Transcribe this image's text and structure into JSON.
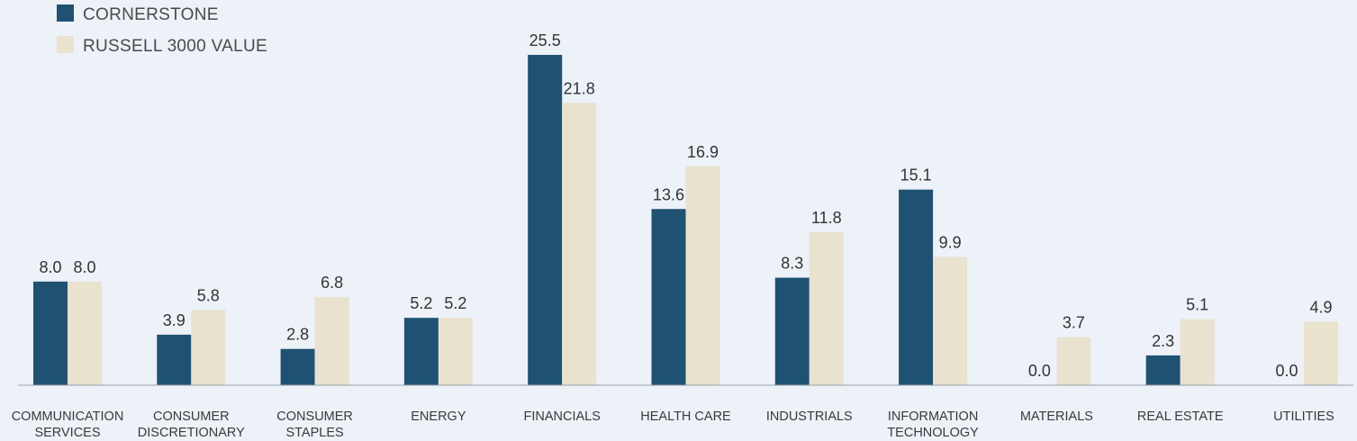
{
  "chart_data": {
    "type": "bar",
    "title": "",
    "xlabel": "",
    "ylabel": "",
    "ylim": [
      0,
      27
    ],
    "grid": false,
    "legend_placement": "top-left",
    "categories": [
      [
        "COMMUNICATION",
        "SERVICES"
      ],
      [
        "CONSUMER",
        "DISCRETIONARY"
      ],
      [
        "CONSUMER",
        "STAPLES"
      ],
      [
        "ENERGY"
      ],
      [
        "FINANCIALS"
      ],
      [
        "HEALTH CARE"
      ],
      [
        "INDUSTRIALS"
      ],
      [
        "INFORMATION",
        "TECHNOLOGY"
      ],
      [
        "MATERIALS"
      ],
      [
        "REAL ESTATE"
      ],
      [
        "UTILITIES"
      ]
    ],
    "series": [
      {
        "name": "CORNERSTONE",
        "color": "#1f5272",
        "values": [
          8.0,
          3.9,
          2.8,
          5.2,
          25.5,
          13.6,
          8.3,
          15.1,
          0.0,
          2.3,
          0.0
        ]
      },
      {
        "name": "RUSSELL 3000 VALUE",
        "color": "#e8e2cf",
        "values": [
          8.0,
          5.8,
          6.8,
          5.2,
          21.8,
          16.9,
          11.8,
          9.9,
          3.7,
          5.1,
          4.9
        ]
      }
    ]
  }
}
